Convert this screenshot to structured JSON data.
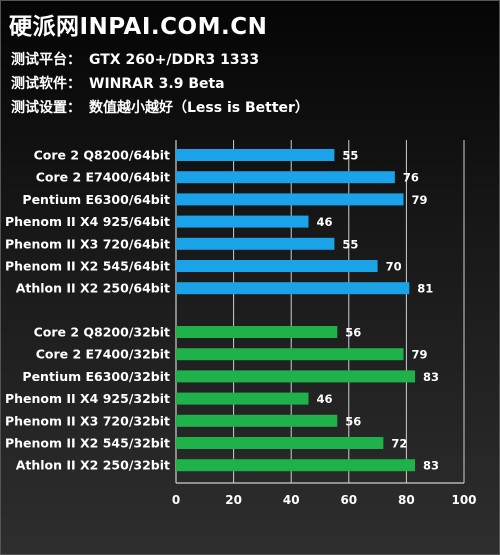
{
  "header": {
    "site_title": "硬派网INPAI.COM.CN",
    "platform_label": "测试平台：",
    "platform_value": "GTX 260+/DDR3 1333",
    "software_label": "测试软件：",
    "software_value": "WINRAR 3.9 Beta",
    "settings_label": "测试设置：",
    "settings_value": "数值越小越好（Less is Better）"
  },
  "colors": {
    "series_64bit": "#1aa3e8",
    "series_32bit": "#20b24a",
    "text": "#ffffff",
    "grid": "#cfcfcf"
  },
  "chart_data": {
    "type": "bar",
    "orientation": "horizontal",
    "xlim": [
      0,
      100
    ],
    "xticks": [
      0,
      20,
      40,
      60,
      80,
      100
    ],
    "grid": true,
    "groups": [
      {
        "name": "64bit",
        "color": "#1aa3e8",
        "categories": [
          "Core 2 Q8200/64bit",
          "Core 2 E7400/64bit",
          "Pentium E6300/64bit",
          "Phenom II X4 925/64bit",
          "Phenom II X3 720/64bit",
          "Phenom II X2 545/64bit",
          "Athlon II X2 250/64bit"
        ],
        "values": [
          55,
          76,
          79,
          46,
          55,
          70,
          81
        ]
      },
      {
        "name": "32bit",
        "color": "#20b24a",
        "categories": [
          "Core 2 Q8200/32bit",
          "Core 2 E7400/32bit",
          "Pentium E6300/32bit",
          "Phenom II X4 925/32bit",
          "Phenom II X3 720/32bit",
          "Phenom II X2 545/32bit",
          "Athlon II X2 250/32bit"
        ],
        "values": [
          56,
          79,
          83,
          46,
          56,
          72,
          83
        ]
      }
    ]
  }
}
